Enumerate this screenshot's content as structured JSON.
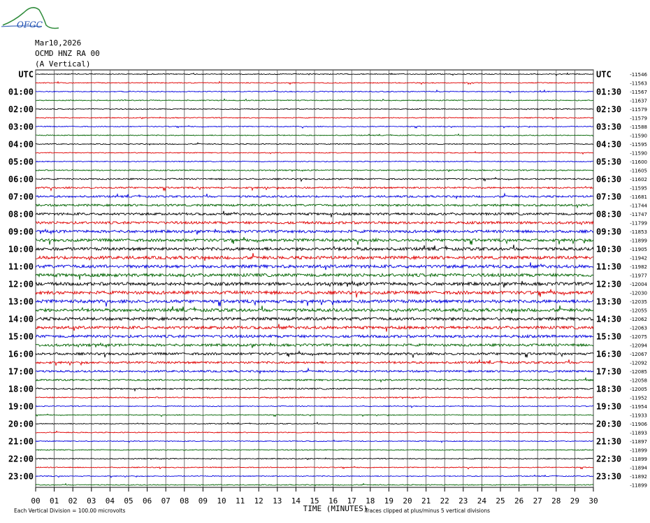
{
  "chart_data": {
    "type": "helicorder",
    "logo": "OFGC",
    "title": "Mar10,2026",
    "station": "OCMD HNZ RA 00",
    "component": "(A Vertical)",
    "xlabel": "TIME (MINUTES)",
    "scale_note": "Each Vertical Division =  100.00 microvolts",
    "clip_note": "Traces clipped at plus/minus 5 vertical divisions",
    "trace_colors": [
      "#000000",
      "#e00000",
      "#0000e0",
      "#006400"
    ],
    "xlim": [
      0,
      30
    ],
    "xticks": [
      {
        "value": 0,
        "label": "00"
      },
      {
        "value": 1,
        "label": "01"
      },
      {
        "value": 2,
        "label": "02"
      },
      {
        "value": 3,
        "label": "03"
      },
      {
        "value": 4,
        "label": "04"
      },
      {
        "value": 5,
        "label": "05"
      },
      {
        "value": 6,
        "label": "06"
      },
      {
        "value": 7,
        "label": "07"
      },
      {
        "value": 8,
        "label": "08"
      },
      {
        "value": 9,
        "label": "09"
      },
      10,
      11,
      12,
      13,
      14,
      15,
      16,
      17,
      18,
      19,
      20,
      21,
      22,
      23,
      24,
      25,
      26,
      27,
      28,
      29,
      30
    ],
    "left_labels": [
      "UTC",
      null,
      "01:00",
      null,
      "02:00",
      null,
      "03:00",
      null,
      "04:00",
      null,
      "05:00",
      null,
      "06:00",
      null,
      "07:00",
      null,
      "08:00",
      null,
      "09:00",
      null,
      "10:00",
      null,
      "11:00",
      null,
      "12:00",
      null,
      "13:00",
      null,
      "14:00",
      null,
      "15:00",
      null,
      "16:00",
      null,
      "17:00",
      null,
      "18:00",
      null,
      "19:00",
      null,
      "20:00",
      null,
      "21:00",
      null,
      "22:00",
      null,
      "23:00",
      null
    ],
    "right_labels": [
      "UTC",
      null,
      "01:30",
      null,
      "02:30",
      null,
      "03:30",
      null,
      "04:30",
      null,
      "05:30",
      null,
      "06:30",
      null,
      "07:30",
      null,
      "08:30",
      null,
      "09:30",
      null,
      "10:30",
      null,
      "11:30",
      null,
      "12:30",
      null,
      "13:30",
      null,
      "14:30",
      null,
      "15:30",
      null,
      "16:30",
      null,
      "17:30",
      null,
      "18:30",
      null,
      "19:30",
      null,
      "20:30",
      null,
      "21:30",
      null,
      "22:30",
      null,
      "23:30",
      null
    ],
    "offsets": [
      -11546,
      -11563,
      -11567,
      -11637,
      -11579,
      -11579,
      -11588,
      -11590,
      -11595,
      -11590,
      -11600,
      -11605,
      -11602,
      -11595,
      -11681,
      -11744,
      -11747,
      -11799,
      -11853,
      -11899,
      -11905,
      -11942,
      -11982,
      -11977,
      -12004,
      -12030,
      -12035,
      -12055,
      -12062,
      -12063,
      -12075,
      -12094,
      -12067,
      -12092,
      -12085,
      -12058,
      -12005,
      -11952,
      -11954,
      -11933,
      -11906,
      -11893,
      -11897,
      -11899,
      -11899,
      -11894,
      -11892,
      -11899
    ]
  }
}
